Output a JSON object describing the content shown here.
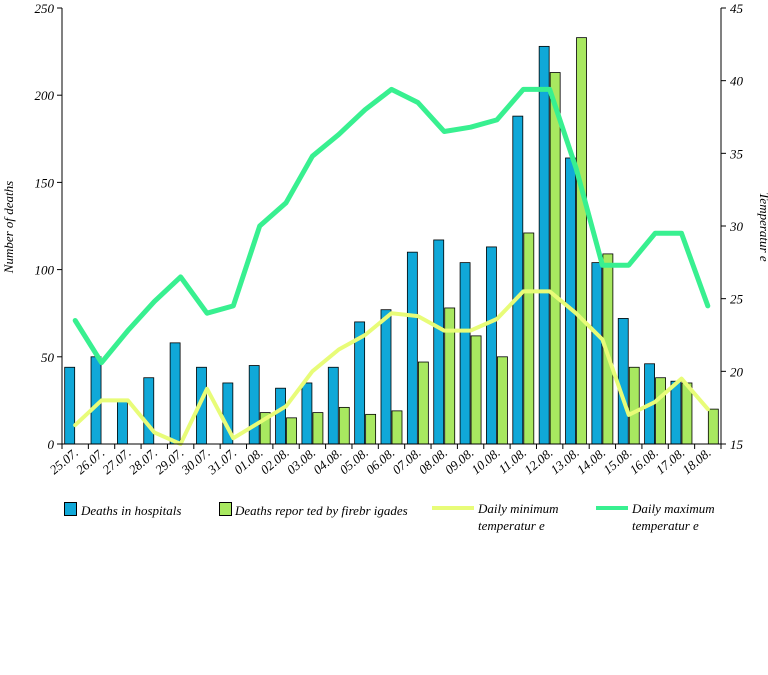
{
  "chart_data": {
    "type": "bar",
    "categories": [
      "25.07.",
      "26.07.",
      "27.07.",
      "28.07.",
      "29.07.",
      "30.07.",
      "31.07.",
      "01.08.",
      "02.08.",
      "03.08.",
      "04.08.",
      "05.08.",
      "06.08.",
      "07.08.",
      "08.08.",
      "09.08.",
      "10.08.",
      "11.08.",
      "12.08.",
      "13.08.",
      "14.08.",
      "15.08.",
      "16.08.",
      "17.08.",
      "18.08."
    ],
    "ylabel": "Number of deaths",
    "y2label": "Temperatur e",
    "ylim": [
      0,
      250
    ],
    "y2lim": [
      15,
      45
    ],
    "yticks": [
      0,
      50,
      100,
      150,
      200,
      250
    ],
    "y2ticks": [
      15,
      20,
      25,
      30,
      35,
      40,
      45
    ],
    "grid": false,
    "legend_position": "bottom",
    "series": [
      {
        "name": "Deaths in hospitals",
        "kind": "bar",
        "axis": "left",
        "color": "#10a8d8",
        "values": [
          44,
          50,
          25,
          38,
          58,
          44,
          35,
          45,
          32,
          35,
          44,
          70,
          77,
          110,
          117,
          104,
          113,
          188,
          228,
          164,
          104,
          72,
          46,
          36,
          null
        ]
      },
      {
        "name": "Deaths repor ted by firebr igades",
        "kind": "bar",
        "axis": "left",
        "color": "#a8e860",
        "values": [
          null,
          null,
          null,
          null,
          null,
          null,
          null,
          18,
          15,
          18,
          21,
          17,
          19,
          47,
          78,
          62,
          50,
          121,
          213,
          233,
          109,
          44,
          38,
          35,
          20
        ]
      },
      {
        "name": "Daily minimum temperatur e",
        "kind": "line",
        "axis": "right",
        "color": "#e8fc78",
        "values": [
          16.3,
          18.0,
          18.0,
          15.8,
          15.0,
          18.8,
          15.4,
          16.5,
          17.6,
          20.0,
          21.5,
          22.5,
          24.0,
          23.8,
          22.8,
          22.8,
          23.6,
          25.5,
          25.5,
          24.0,
          22.2,
          17.0,
          17.9,
          19.5,
          17.4
        ]
      },
      {
        "name": "Daily maximum temperatur e",
        "kind": "line",
        "axis": "right",
        "color": "#38f090",
        "values": [
          23.5,
          20.6,
          22.8,
          24.8,
          26.5,
          24.0,
          24.5,
          30.0,
          31.6,
          34.8,
          36.3,
          38.0,
          39.4,
          38.5,
          36.5,
          36.8,
          37.3,
          39.4,
          39.4,
          34.0,
          27.3,
          27.3,
          29.5,
          29.5,
          24.5
        ]
      }
    ]
  },
  "legend": {
    "hospitals": "Deaths in hospitals",
    "firebrigades": "Deaths repor ted by firebr igades",
    "tmin_1": "Daily minimum",
    "tmin_2": "temperatur e",
    "tmax_1": "Daily maximum",
    "tmax_2": "temperatur e"
  },
  "colors": {
    "hospitals": "#10a8d8",
    "firebrigades": "#a8e860",
    "tmin": "#e8fc78",
    "tmax": "#38f090"
  }
}
